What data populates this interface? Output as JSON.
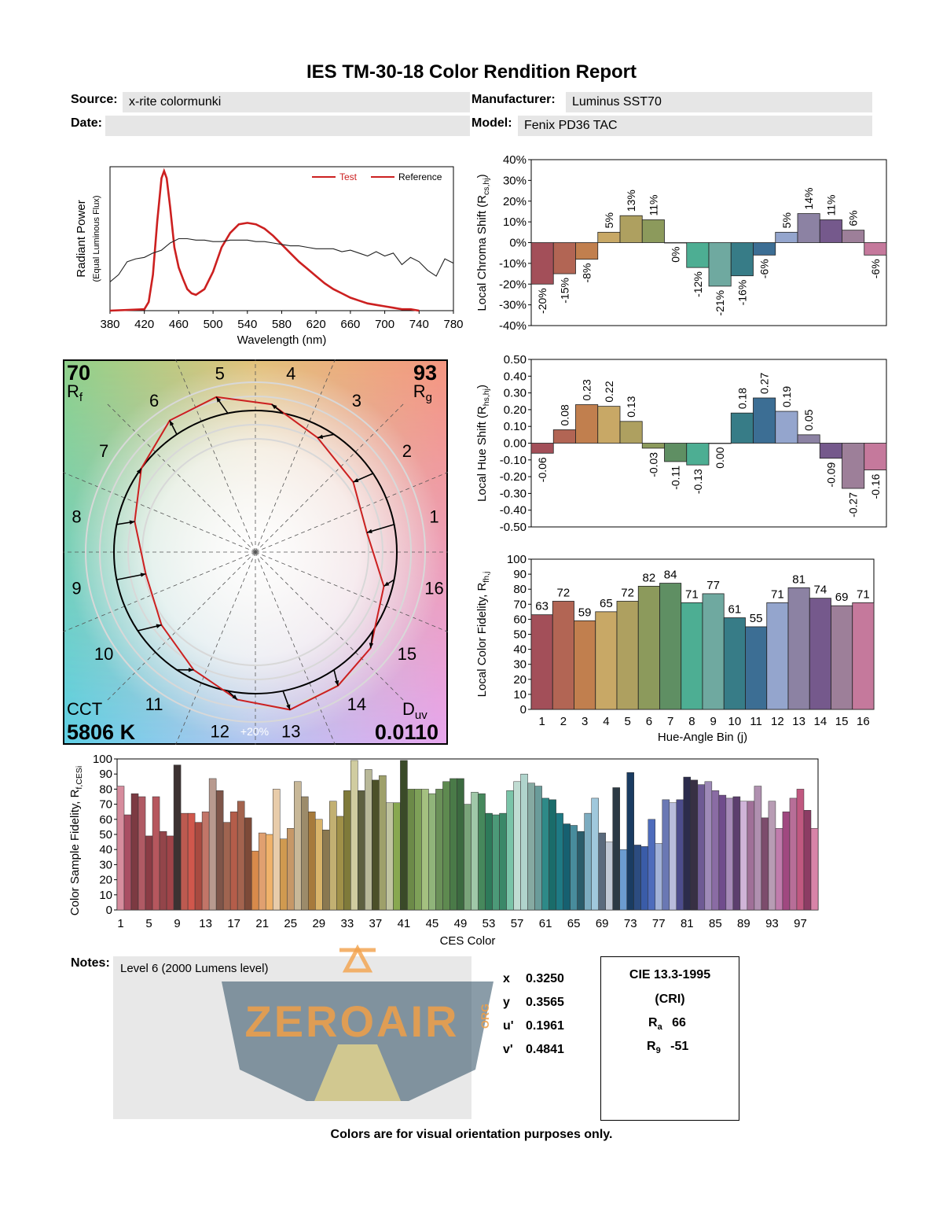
{
  "report": {
    "title": "IES TM-30-18 Color Rendition Report",
    "source_label": "Source:",
    "source": "x-rite colormunki",
    "manufacturer_label": "Manufacturer:",
    "manufacturer": "Luminus SST70",
    "date_label": "Date:",
    "date": "",
    "model_label": "Model:",
    "model": "Fenix PD36 TAC",
    "notes_label": "Notes:",
    "notes": "Level 6 (2000 Lumens level)",
    "watermark": "ZEROAIR",
    "watermark_suffix": "ORG",
    "footer": "Colors are for visual orientation purposes only."
  },
  "coords": [
    {
      "label": "x",
      "value": "0.3250"
    },
    {
      "label": "y",
      "value": "0.3565"
    },
    {
      "label": "u'",
      "value": "0.1961"
    },
    {
      "label": "v'",
      "value": "0.4841"
    }
  ],
  "cri": {
    "title": "CIE 13.3-1995",
    "subtitle": "(CRI)",
    "ra_label": "R",
    "ra_sub": "a",
    "ra": "66",
    "r9_label": "R",
    "r9_sub": "9",
    "r9": "-51"
  },
  "colors": {
    "test": "#cc2020",
    "reference": "#000000",
    "bins": [
      "#a34f59",
      "#b26554",
      "#c17f4e",
      "#c8a866",
      "#aea060",
      "#8c9a5c",
      "#5f8f63",
      "#4dae93",
      "#6fa9a0",
      "#377c87",
      "#3c6e94",
      "#94a5cd",
      "#8c82a3",
      "#75598c",
      "#9d7f99",
      "#c5799c"
    ]
  },
  "chart_data": [
    {
      "id": "spd",
      "type": "line",
      "xlabel": "Wavelength (nm)",
      "ylabel": "Radiant Power",
      "ylabel2": "(Equal Luminous Flux)",
      "xlim": [
        380,
        780
      ],
      "xticks": [
        380,
        420,
        460,
        500,
        540,
        580,
        620,
        660,
        700,
        740,
        780
      ],
      "legend": [
        "Test",
        "Reference"
      ],
      "legend_position": "top-right",
      "series": [
        {
          "name": "Test",
          "x": [
            380,
            420,
            425,
            430,
            435,
            440,
            443,
            446,
            450,
            455,
            460,
            465,
            470,
            475,
            480,
            490,
            500,
            510,
            520,
            530,
            540,
            550,
            560,
            570,
            580,
            590,
            600,
            610,
            620,
            630,
            640,
            650,
            660,
            670,
            680,
            690,
            700,
            710,
            720,
            730,
            740
          ],
          "y": [
            0,
            0.01,
            0.06,
            0.25,
            0.62,
            0.92,
            0.97,
            0.92,
            0.72,
            0.44,
            0.3,
            0.22,
            0.15,
            0.12,
            0.11,
            0.15,
            0.27,
            0.44,
            0.54,
            0.6,
            0.61,
            0.6,
            0.57,
            0.52,
            0.46,
            0.4,
            0.34,
            0.29,
            0.24,
            0.19,
            0.15,
            0.12,
            0.09,
            0.07,
            0.05,
            0.04,
            0.03,
            0.02,
            0.01,
            0.01,
            0
          ]
        },
        {
          "name": "Reference",
          "x": [
            380,
            390,
            400,
            410,
            420,
            430,
            440,
            450,
            460,
            470,
            480,
            490,
            500,
            510,
            520,
            530,
            540,
            550,
            560,
            570,
            580,
            590,
            600,
            610,
            620,
            630,
            640,
            650,
            660,
            670,
            680,
            690,
            700,
            710,
            720,
            730,
            740,
            750,
            760,
            770,
            780
          ],
          "y": [
            0.2,
            0.25,
            0.34,
            0.36,
            0.37,
            0.4,
            0.42,
            0.47,
            0.5,
            0.5,
            0.49,
            0.49,
            0.48,
            0.48,
            0.49,
            0.49,
            0.49,
            0.48,
            0.48,
            0.47,
            0.46,
            0.45,
            0.45,
            0.44,
            0.43,
            0.43,
            0.43,
            0.41,
            0.42,
            0.4,
            0.38,
            0.41,
            0.38,
            0.4,
            0.32,
            0.37,
            0.34,
            0.28,
            0.24,
            0.36,
            0.33
          ]
        }
      ]
    },
    {
      "id": "chroma",
      "type": "bar",
      "ylabel": "Local Chroma Shift (R",
      "ylabel_sub": "cs,hj",
      "ylim": [
        -40,
        40
      ],
      "yticks": [
        40,
        30,
        20,
        10,
        0,
        -10,
        -20,
        -30,
        -40
      ],
      "ytick_suffix": "%",
      "categories": [
        1,
        2,
        3,
        4,
        5,
        6,
        7,
        8,
        9,
        10,
        11,
        12,
        13,
        14,
        15,
        16
      ],
      "values": [
        -20,
        -15,
        -8,
        5,
        13,
        11,
        0,
        -12,
        -21,
        -16,
        -6,
        5,
        14,
        11,
        6,
        -6
      ],
      "labels": [
        "-20%",
        "-15%",
        "-8%",
        "5%",
        "13%",
        "11%",
        "0%",
        "-12%",
        "-21%",
        "-16%",
        "-6%",
        "5%",
        "14%",
        "11%",
        "6%",
        "-6%"
      ]
    },
    {
      "id": "hue",
      "type": "bar",
      "ylabel": "Local Hue Shift (R",
      "ylabel_sub": "hs,hj",
      "ylim": [
        -0.5,
        0.5
      ],
      "yticks": [
        "0.50",
        "0.40",
        "0.30",
        "0.20",
        "0.10",
        "0.00",
        "-0.10",
        "-0.20",
        "-0.30",
        "-0.40",
        "-0.50"
      ],
      "categories": [
        1,
        2,
        3,
        4,
        5,
        6,
        7,
        8,
        9,
        10,
        11,
        12,
        13,
        14,
        15,
        16
      ],
      "values": [
        -0.06,
        0.08,
        0.23,
        0.22,
        0.13,
        -0.03,
        -0.11,
        -0.13,
        0.0,
        0.18,
        0.27,
        0.19,
        0.05,
        -0.09,
        -0.27,
        -0.16
      ],
      "labels": [
        "-0.06",
        "0.08",
        "0.23",
        "0.22",
        "0.13",
        "-0.03",
        "-0.11",
        "-0.13",
        "0.00",
        "0.18",
        "0.27",
        "0.19",
        "0.05",
        "-0.09",
        "-0.27",
        "-0.16"
      ]
    },
    {
      "id": "fidelity",
      "type": "bar",
      "ylabel": "Local Color Fidelity, R",
      "ylabel_sub": "fh,j",
      "xlabel": "Hue-Angle Bin (j)",
      "ylim": [
        0,
        100
      ],
      "yticks": [
        100,
        90,
        80,
        70,
        60,
        50,
        40,
        30,
        20,
        10,
        0
      ],
      "categories": [
        1,
        2,
        3,
        4,
        5,
        6,
        7,
        8,
        9,
        10,
        11,
        12,
        13,
        14,
        15,
        16
      ],
      "values": [
        63,
        72,
        59,
        65,
        72,
        82,
        84,
        71,
        77,
        61,
        55,
        71,
        81,
        74,
        69,
        71
      ],
      "labels": [
        "63",
        "72",
        "59",
        "65",
        "72",
        "82",
        "84",
        "71",
        "77",
        "61",
        "55",
        "71",
        "81",
        "74",
        "69",
        "71"
      ]
    },
    {
      "id": "vector",
      "type": "scatter",
      "rf_value": "70",
      "rf_label": "R",
      "rf_sub": "f",
      "rg_value": "93",
      "rg_label": "R",
      "rg_sub": "g",
      "cct_label": "CCT",
      "cct_value": "5806 K",
      "duv_label": "D",
      "duv_sub": "uv",
      "duv_value": "0.0110",
      "ring_label": "+20%",
      "bin_labels": [
        "1",
        "2",
        "3",
        "4",
        "5",
        "6",
        "7",
        "8",
        "9",
        "10",
        "11",
        "12",
        "13",
        "14",
        "15",
        "16"
      ],
      "reference_radius": [
        1,
        1,
        1,
        1,
        1,
        1,
        1,
        1,
        1,
        1,
        1,
        1,
        1,
        1,
        1,
        1
      ],
      "test_radius": [
        0.8,
        0.85,
        0.92,
        1.05,
        1.13,
        1.11,
        1.0,
        0.88,
        0.79,
        0.84,
        0.94,
        1.05,
        1.14,
        1.11,
        1.06,
        0.94
      ],
      "hue_shift": [
        -0.06,
        0.08,
        0.23,
        0.22,
        0.13,
        -0.03,
        -0.11,
        -0.13,
        0.0,
        0.18,
        0.27,
        0.19,
        0.05,
        -0.09,
        -0.27,
        -0.16
      ]
    },
    {
      "id": "ces",
      "type": "bar",
      "ylabel": "Color Sample Fidelity, R",
      "ylabel_sub": "f,CESi",
      "xlabel": "CES Color",
      "ylim": [
        0,
        100
      ],
      "yticks": [
        100,
        90,
        80,
        70,
        60,
        50,
        40,
        30,
        20,
        10,
        0
      ],
      "xticks": [
        1,
        5,
        9,
        13,
        17,
        21,
        25,
        29,
        33,
        37,
        41,
        45,
        49,
        53,
        57,
        61,
        65,
        69,
        73,
        77,
        81,
        85,
        89,
        93,
        97
      ],
      "values": [
        82,
        63,
        77,
        75,
        49,
        75,
        52,
        49,
        96,
        64,
        64,
        58,
        65,
        87,
        79,
        58,
        65,
        72,
        61,
        39,
        51,
        50,
        80,
        47,
        54,
        85,
        75,
        65,
        60,
        53,
        72,
        62,
        79,
        99,
        79,
        93,
        86,
        89,
        71,
        71,
        99,
        80,
        80,
        80,
        77,
        80,
        85,
        87,
        87,
        70,
        78,
        77,
        64,
        63,
        64,
        79,
        85,
        90,
        84,
        82,
        74,
        73,
        64,
        57,
        56,
        52,
        64,
        74,
        51,
        45,
        81,
        40,
        91,
        43,
        42,
        60,
        44,
        73,
        71,
        73,
        88,
        86,
        83,
        85,
        79,
        76,
        74,
        75,
        72,
        72,
        82,
        61,
        72,
        54,
        65,
        74,
        80,
        66,
        54
      ],
      "colors": [
        "#d68c9d",
        "#a94e63",
        "#7c3a42",
        "#b05a64",
        "#8a3c45",
        "#b6575e",
        "#93454a",
        "#a04449",
        "#3c3232",
        "#bd5a50",
        "#d0574c",
        "#a84a40",
        "#c27568",
        "#b89a8f",
        "#7e5549",
        "#9f6450",
        "#b45d4a",
        "#a3634e",
        "#7d4a38",
        "#d88a4b",
        "#e0a070",
        "#f0b26a",
        "#e8ccaa",
        "#d09a50",
        "#c69868",
        "#c8b898",
        "#9c8b6a",
        "#a67a3c",
        "#d9b46a",
        "#8a7850",
        "#c2b072",
        "#a09048",
        "#7f7a3a",
        "#d0cca0",
        "#5e6040",
        "#b8b898",
        "#4c5028",
        "#9ea06a",
        "#c0c4a0",
        "#88a850",
        "#3a4a28",
        "#6c8a48",
        "#7ea058",
        "#a4c080",
        "#90b47a",
        "#6a9058",
        "#5e8a50",
        "#4a7a48",
        "#3c6a40",
        "#7aa47a",
        "#a0c8a8",
        "#46885c",
        "#2e7a5a",
        "#4c9a78",
        "#3a8868",
        "#7ac4a8",
        "#c0dcd2",
        "#b0d4cc",
        "#86aaa2",
        "#6a9c9a",
        "#2e8a88",
        "#1a6c6a",
        "#1e7a84",
        "#166070",
        "#488c9c",
        "#2a5c6a",
        "#7cacc0",
        "#a0c8dc",
        "#5a6a7c",
        "#c0c8d4",
        "#2c3a44",
        "#6c9cd0",
        "#1a3c62",
        "#2c4c80",
        "#3a5ca8",
        "#4e6cbc",
        "#a2b2d8",
        "#6a78b4",
        "#b8bcdc",
        "#4c4c8c",
        "#2c2c4c",
        "#383044",
        "#6e5a94",
        "#9e8ab8",
        "#8a6ca4",
        "#704c8c",
        "#a68ab8",
        "#5c3e6e",
        "#d0b4d8",
        "#a07098",
        "#b090b0",
        "#7c4c6c",
        "#b89cb4",
        "#c07cac",
        "#a04880",
        "#b86e98",
        "#c05880",
        "#8c3c64",
        "#d884a8"
      ]
    }
  ]
}
